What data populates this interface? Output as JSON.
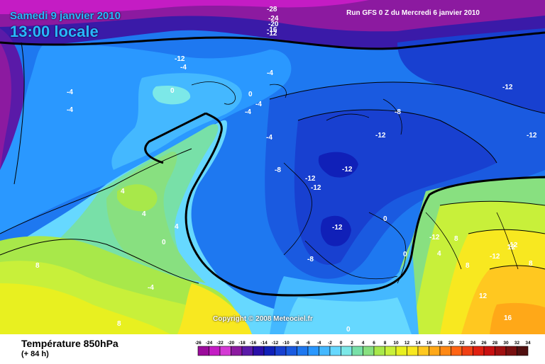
{
  "header": {
    "date": "Samedi 9 janvier 2010",
    "local_time": "13:00 locale",
    "run_info": "Run GFS 0 Z du Mercredi 6 janvier 2010"
  },
  "map": {
    "copyright": "Copyright © 2008 Meteociel.fr",
    "labels": [
      "-28",
      "-24",
      "-20",
      "-16",
      "-12",
      "-12",
      "-4",
      "-4",
      "0",
      "0",
      "-4",
      "-4",
      "-4",
      "-4",
      "-4",
      "-12",
      "-8",
      "-12",
      "-8",
      "-12",
      "-12",
      "-12",
      "-12",
      "-12",
      "4",
      "4",
      "4",
      "0",
      "-12",
      "0",
      "-8",
      "0",
      "4",
      "8",
      "-12",
      "12",
      "8",
      "8",
      "8",
      "-4",
      "12",
      "16",
      "8",
      "0",
      "-12"
    ]
  },
  "footer": {
    "parameter_title": "Température 850hPa",
    "forecast_hour": "(+ 84 h)"
  },
  "legend": {
    "ticks": [
      "-26",
      "-24",
      "-22",
      "-20",
      "-18",
      "-16",
      "-14",
      "-12",
      "-10",
      "-8",
      "-6",
      "-4",
      "-2",
      "0",
      "2",
      "4",
      "6",
      "8",
      "10",
      "12",
      "14",
      "16",
      "18",
      "20",
      "22",
      "24",
      "26",
      "28",
      "30",
      "32",
      "34"
    ],
    "colors": [
      "#9b0b9b",
      "#c41cc4",
      "#d43ad4",
      "#8c1aa0",
      "#5a1aa8",
      "#2a0fa8",
      "#1020b8",
      "#1840d0",
      "#1a5ae0",
      "#1e78f0",
      "#2a98ff",
      "#44b8ff",
      "#66d8ff",
      "#7ce8e8",
      "#78e0a8",
      "#88e080",
      "#a8e84a",
      "#c8f03a",
      "#e8f020",
      "#f8e820",
      "#ffc820",
      "#ffa818",
      "#ff8814",
      "#ff6414",
      "#f04014",
      "#e02010",
      "#c81010",
      "#a01010",
      "#781010",
      "#501010"
    ]
  }
}
